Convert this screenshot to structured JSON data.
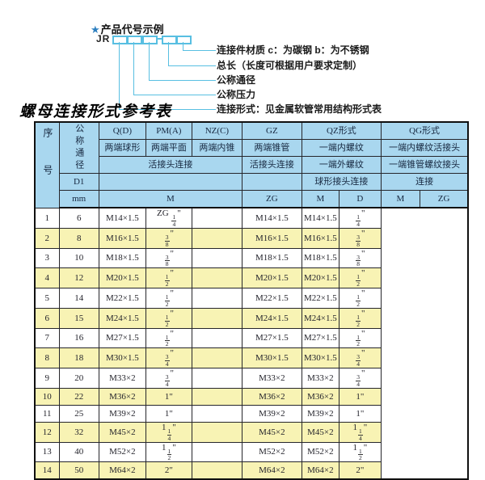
{
  "diagram": {
    "star": "★",
    "example_title": "产品代号示例",
    "code_prefix": "JR",
    "labels": [
      "连接件材质  c：为碳钢  b：为不锈钢",
      "总长（长度可根据用户要求定制）",
      "公称通径",
      "公称压力",
      "连接形式：见金属软管常用结构形式表"
    ]
  },
  "table": {
    "title": "螺母连接形式参考表",
    "header": {
      "seq": "序号",
      "nominal_diameter": "公称通径",
      "d1": "D1",
      "mm": "mm",
      "col_qd": "Q(D)",
      "col_pma": "PM(A)",
      "col_nzc": "NZ(C)",
      "col_gz": "GZ",
      "col_qz": "QZ形式",
      "col_qg": "QG形式",
      "qd_desc": "两端球形",
      "pma_desc": "两端平面",
      "nzc_desc": "两端内锥",
      "gz_desc": "两端锥管",
      "qz_desc1": "一端内螺纹",
      "qg_desc1": "一端内螺纹活接头",
      "union_conn": "活接头连接",
      "gz_conn": "活接头连接",
      "qz_desc2": "一端外螺纹",
      "qg_desc2": "一端锥管螺纹接头",
      "qz_conn": "球形接头连接",
      "qg_conn": "连接",
      "m": "M",
      "zg": "ZG",
      "d": "D"
    },
    "rows": [
      [
        "1",
        "6",
        "M14×1.5",
        "ZG {1/4}\"",
        "",
        "M14×1.5",
        "M14×1.5",
        "{1/4}\""
      ],
      [
        "2",
        "8",
        "M16×1.5",
        "{3/8}\"",
        "",
        "M16×1.5",
        "M16×1.5",
        "{3/8}\""
      ],
      [
        "3",
        "10",
        "M18×1.5",
        "{3/8}\"",
        "",
        "M18×1.5",
        "M18×1.5",
        "{3/8}\""
      ],
      [
        "4",
        "12",
        "M20×1.5",
        "{1/2}\"",
        "",
        "M20×1.5",
        "M20×1.5",
        "{1/2}\""
      ],
      [
        "5",
        "14",
        "M22×1.5",
        "{1/2}\"",
        "",
        "M22×1.5",
        "M22×1.5",
        "{1/2}\""
      ],
      [
        "6",
        "15",
        "M24×1.5",
        "{1/2}\"",
        "",
        "M24×1.5",
        "M24×1.5",
        "{1/2}\""
      ],
      [
        "7",
        "16",
        "M27×1.5",
        "{1/2}\"",
        "",
        "M27×1.5",
        "M27×1.5",
        "{1/2}\""
      ],
      [
        "8",
        "18",
        "M30×1.5",
        "{3/4}\"",
        "",
        "M30×1.5",
        "M30×1.5",
        "{3/4}\""
      ],
      [
        "9",
        "20",
        "M33×2",
        "{3/4}\"",
        "",
        "M33×2",
        "M33×2",
        "{3/4}\""
      ],
      [
        "10",
        "22",
        "M36×2",
        "1\"",
        "",
        "M36×2",
        "M36×2",
        "1\""
      ],
      [
        "11",
        "25",
        "M39×2",
        "1\"",
        "",
        "M39×2",
        "M39×2",
        "1\""
      ],
      [
        "12",
        "32",
        "M45×2",
        "1{1/4}\"",
        "",
        "M45×2",
        "M45×2",
        "1{1/4}\""
      ],
      [
        "13",
        "40",
        "M52×2",
        "1{1/2}\"",
        "",
        "M52×2",
        "M52×2",
        "1{1/2}\""
      ],
      [
        "14",
        "50",
        "M64×2",
        "2\"",
        "",
        "M64×2",
        "M64×2",
        "2\""
      ]
    ]
  },
  "colors": {
    "header_bg": "#a9d7ef",
    "row_alt_bg": "#f8f3b4",
    "diagram_line": "#58bfe2",
    "star_blue": "#2d7fc0"
  }
}
